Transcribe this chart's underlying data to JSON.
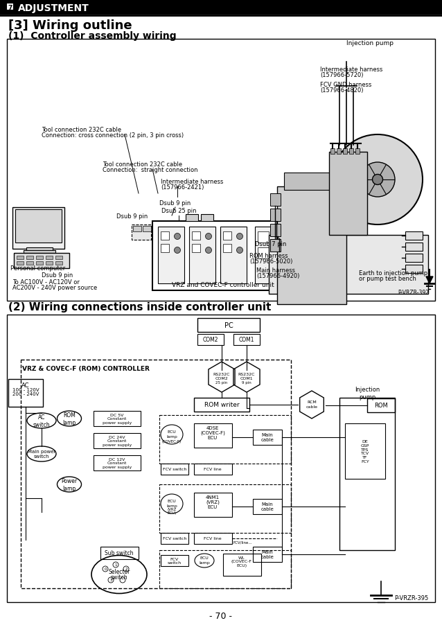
{
  "page_bg": "#ffffff",
  "header_text": "7  ADJUSTMENT",
  "section_title": "[3] Wiring outline",
  "subsection1": "(1)  Controller assembly wiring",
  "subsection2": "(2) Wiring connections inside controller unit",
  "page_number": "- 70 -",
  "ref1": "P-VRZR-392",
  "ref2": "P-VRZR-395"
}
